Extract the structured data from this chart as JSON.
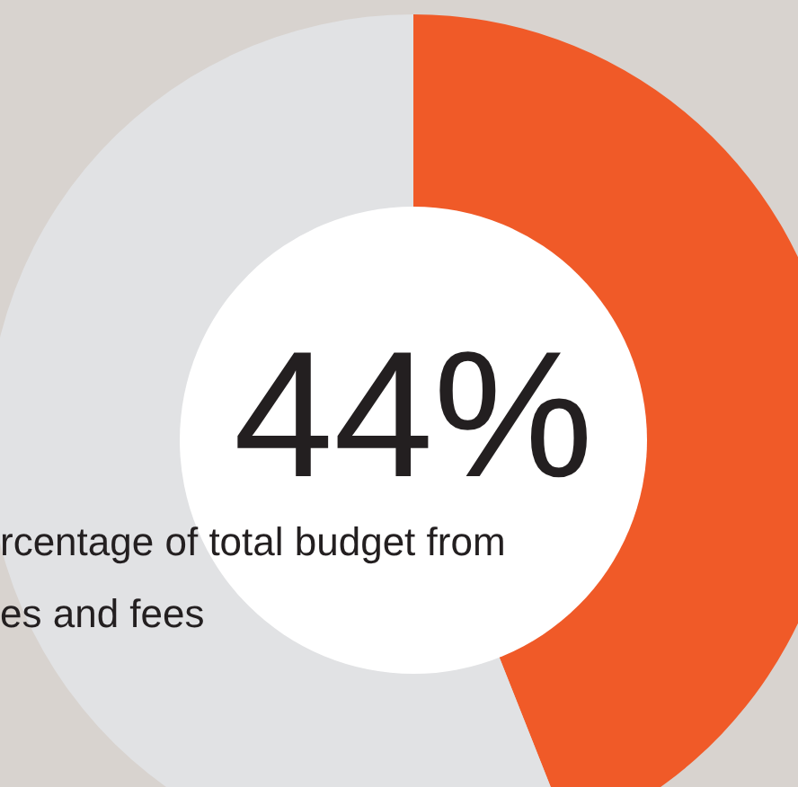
{
  "chart_data": {
    "type": "donut",
    "categories": [
      null,
      null
    ],
    "values": [
      44,
      56
    ],
    "colors": [
      "#f05a28",
      "#e1e2e4"
    ],
    "value_labels": [
      "44%",
      null
    ],
    "annotations": [
      "rcentage of total budget from\nes and fees"
    ]
  }
}
